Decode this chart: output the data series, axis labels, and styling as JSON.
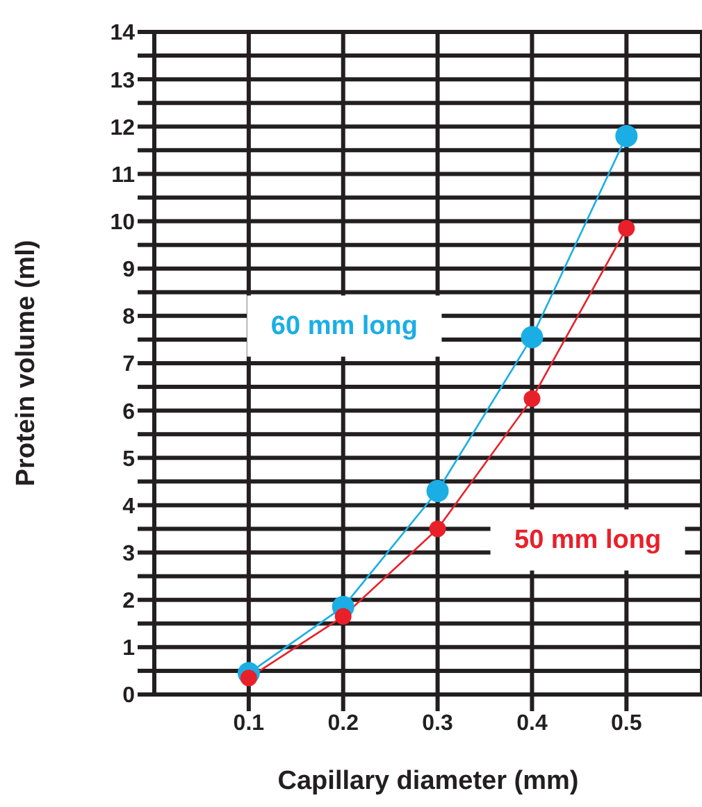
{
  "chart_data": {
    "type": "line",
    "xlabel": "Capillary diameter (mm)",
    "ylabel": "Protein volume (ml)",
    "x": [
      0.1,
      0.2,
      0.3,
      0.4,
      0.5
    ],
    "series": [
      {
        "name": "60 mm long",
        "color": "#1aaee5",
        "values": [
          0.45,
          1.85,
          4.3,
          7.55,
          11.8
        ]
      },
      {
        "name": "50 mm long",
        "color": "#e8202a",
        "values": [
          0.35,
          1.65,
          3.5,
          6.25,
          9.85
        ]
      }
    ],
    "xlim": [
      0,
      0.58
    ],
    "xticks": [
      0.1,
      0.2,
      0.3,
      0.4,
      0.5
    ],
    "ylim": [
      0,
      14
    ],
    "yticks": [
      0,
      {
        "value": 0.5,
        "label": null
      },
      1,
      {
        "value": 1.5,
        "label": null
      },
      2,
      {
        "value": 2.5,
        "label": null
      },
      3,
      {
        "value": 3.5,
        "label": null
      },
      4,
      {
        "value": 4.5,
        "label": null
      },
      5,
      {
        "value": 5.5,
        "label": null
      },
      6,
      {
        "value": 6.5,
        "label": null
      },
      7,
      {
        "value": 7.5,
        "label": null
      },
      8,
      {
        "value": 8.5,
        "label": null
      },
      9,
      {
        "value": 9.5,
        "label": null
      },
      10,
      {
        "value": 10.5,
        "label": null
      },
      11,
      {
        "value": 11.5,
        "label": null
      },
      12,
      {
        "value": 12.5,
        "label": null
      },
      13,
      {
        "value": 13.5,
        "label": null
      },
      14
    ],
    "grid": true,
    "legend": false,
    "marker": "circle",
    "line_style": "solid"
  }
}
